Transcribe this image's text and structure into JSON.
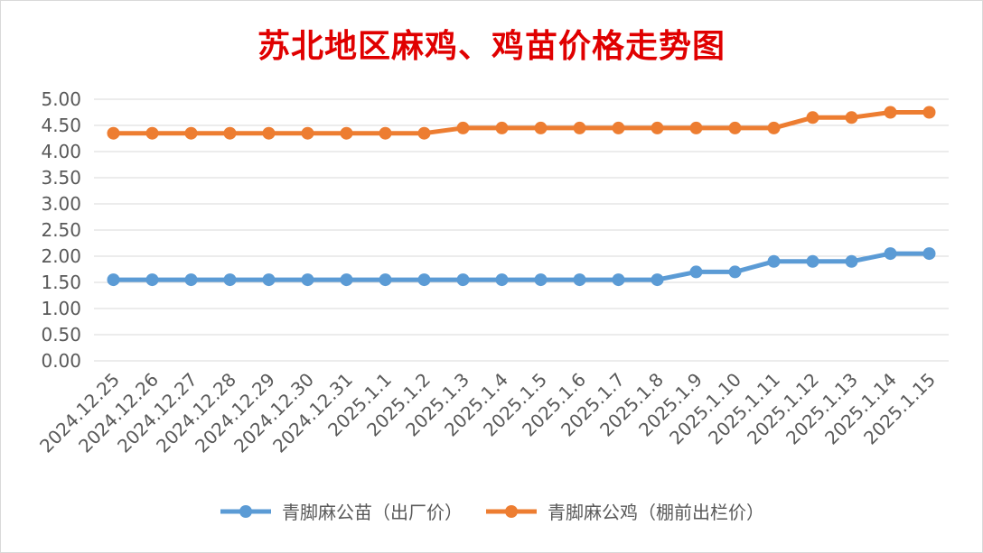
{
  "chart_data": {
    "type": "line",
    "title": "苏北地区麻鸡、鸡苗价格走势图",
    "categories": [
      "2024.12.25",
      "2024.12.26",
      "2024.12.27",
      "2024.12.28",
      "2024.12.29",
      "2024.12.30",
      "2024.12.31",
      "2025.1.1",
      "2025.1.2",
      "2025.1.3",
      "2025.1.4",
      "2025.1.5",
      "2025.1.6",
      "2025.1.7",
      "2025.1.8",
      "2025.1.9",
      "2025.1.10",
      "2025.1.11",
      "2025.1.12",
      "2025.1.13",
      "2025.1.14",
      "2025.1.15"
    ],
    "yticks": [
      "0.00",
      "0.50",
      "1.00",
      "1.50",
      "2.00",
      "2.50",
      "3.00",
      "3.50",
      "4.00",
      "4.50",
      "5.00"
    ],
    "ylim": [
      0,
      5
    ],
    "grid": true,
    "legend_position": "bottom",
    "series": [
      {
        "name": "青脚麻公苗（出厂价）",
        "color": "#5b9bd5",
        "values": [
          1.55,
          1.55,
          1.55,
          1.55,
          1.55,
          1.55,
          1.55,
          1.55,
          1.55,
          1.55,
          1.55,
          1.55,
          1.55,
          1.55,
          1.55,
          1.7,
          1.7,
          1.9,
          1.9,
          1.9,
          2.05,
          2.05
        ]
      },
      {
        "name": "青脚麻公鸡（棚前出栏价）",
        "color": "#ed7d31",
        "values": [
          4.35,
          4.35,
          4.35,
          4.35,
          4.35,
          4.35,
          4.35,
          4.35,
          4.35,
          4.45,
          4.45,
          4.45,
          4.45,
          4.45,
          4.45,
          4.45,
          4.45,
          4.45,
          4.65,
          4.65,
          4.75,
          4.75
        ]
      }
    ]
  }
}
